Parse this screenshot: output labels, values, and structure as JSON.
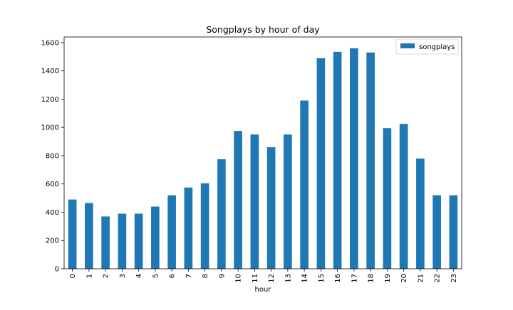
{
  "chart_data": {
    "type": "bar",
    "title": "Songplays by hour of day",
    "xlabel": "hour",
    "ylabel": "",
    "ylim": [
      0,
      1640
    ],
    "yticks": [
      0,
      200,
      400,
      600,
      800,
      1000,
      1200,
      1400,
      1600
    ],
    "grid": false,
    "legend_position": "top-right",
    "categories": [
      "0",
      "1",
      "2",
      "3",
      "4",
      "5",
      "6",
      "7",
      "8",
      "9",
      "10",
      "11",
      "12",
      "13",
      "14",
      "15",
      "16",
      "17",
      "18",
      "19",
      "20",
      "21",
      "22",
      "23"
    ],
    "series": [
      {
        "name": "songplays",
        "color": "#1f77b4",
        "values": [
          490,
          465,
          370,
          390,
          390,
          440,
          520,
          575,
          605,
          775,
          975,
          950,
          860,
          950,
          1190,
          1490,
          1535,
          1560,
          1530,
          995,
          1025,
          780,
          520,
          520
        ]
      }
    ]
  }
}
